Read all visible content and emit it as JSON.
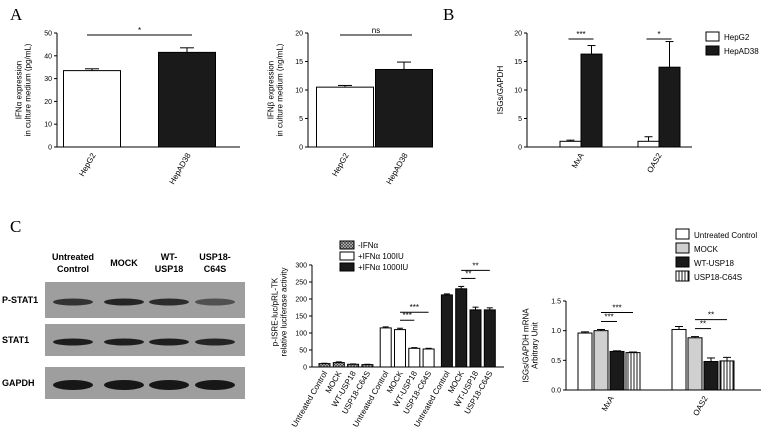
{
  "panels": {
    "A": "A",
    "B": "B",
    "C": "C"
  },
  "chart_data": [
    {
      "id": "ifna",
      "type": "bar",
      "ylabel": "IFNα expression\nin culture medium (pg/mL)",
      "ylim": [
        0,
        50
      ],
      "yticks": [
        0,
        10,
        20,
        30,
        40,
        50
      ],
      "categories": [
        "HepG2",
        "HepAD38"
      ],
      "values": [
        33.5,
        41.5
      ],
      "errors": [
        0.8,
        2.0
      ],
      "fills": [
        "#ffffff",
        "#1a1a1a"
      ],
      "significance": [
        {
          "from": 0,
          "to": 1,
          "label": "*"
        }
      ]
    },
    {
      "id": "ifnb",
      "type": "bar",
      "ylabel": "IFNβ expression\nin culture medium (ng/mL)",
      "ylim": [
        0,
        20
      ],
      "yticks": [
        0,
        5,
        10,
        15,
        20
      ],
      "categories": [
        "HepG2",
        "HepAD38"
      ],
      "values": [
        10.5,
        13.6
      ],
      "errors": [
        0.3,
        1.3
      ],
      "fills": [
        "#ffffff",
        "#1a1a1a"
      ],
      "significance": [
        {
          "from": 0,
          "to": 1,
          "label": "ns"
        }
      ]
    },
    {
      "id": "isgs",
      "type": "bar",
      "ylabel": "ISGs/GAPDH",
      "ylim": [
        0,
        20
      ],
      "yticks": [
        0,
        5,
        10,
        15,
        20
      ],
      "categories": [
        "MxA",
        "OAS2"
      ],
      "series": [
        {
          "name": "HepG2",
          "fill": "#ffffff",
          "values": [
            1.0,
            1.0
          ],
          "errors": [
            0.2,
            0.8
          ]
        },
        {
          "name": "HepAD38",
          "fill": "#1a1a1a",
          "values": [
            16.3,
            14.0
          ],
          "errors": [
            1.5,
            4.5
          ]
        }
      ],
      "significance": [
        {
          "group": 0,
          "label": "***"
        },
        {
          "group": 1,
          "label": "*"
        }
      ]
    },
    {
      "id": "luciferase",
      "type": "bar",
      "ylabel": "p-ISRE-luc/pRL-TK\nrelative luciferase activity",
      "ylim": [
        0,
        300
      ],
      "yticks": [
        0,
        50,
        100,
        150,
        200,
        250,
        300
      ],
      "categories": [
        "Untreated Control",
        "MOCK",
        "WT-USP18",
        "USP18-C64S",
        "Untreated Control",
        "MOCK",
        "WT-USP18",
        "USP18-C64S",
        "Untreated Control",
        "MOCK",
        "WT-USP18",
        "USP18-C64S"
      ],
      "groups": [
        "-IFNα",
        "+IFNα 100IU",
        "+IFNα 1000IU"
      ],
      "values": [
        10,
        13,
        8,
        7,
        115,
        110,
        55,
        53,
        212,
        230,
        168,
        168
      ],
      "errors": [
        1,
        2,
        1,
        1,
        3,
        4,
        2,
        2,
        3,
        7,
        8,
        6
      ],
      "significance": [
        {
          "from": 5,
          "to": 6,
          "label": "***",
          "level": 0
        },
        {
          "from": 5,
          "to": 7,
          "label": "***",
          "level": 1
        },
        {
          "from": 9,
          "to": 10,
          "label": "**",
          "level": 0
        },
        {
          "from": 9,
          "to": 11,
          "label": "**",
          "level": 1
        }
      ]
    },
    {
      "id": "usp18_isgs",
      "type": "bar",
      "ylabel": "ISGs/GAPDH mRNA\nArbitrary Unit",
      "ylim": [
        0,
        1.5
      ],
      "yticks": [
        "0.0",
        "0.5",
        "1.0",
        "1.5"
      ],
      "categories": [
        "MxA",
        "OAS2"
      ],
      "series": [
        {
          "name": "Untreated Control",
          "fill": "white",
          "values": [
            0.96,
            1.02
          ],
          "errors": [
            0.02,
            0.05
          ]
        },
        {
          "name": "MOCK",
          "fill": "lightgray",
          "values": [
            1.0,
            0.88
          ],
          "errors": [
            0.02,
            0.02
          ]
        },
        {
          "name": "WT-USP18",
          "fill": "black",
          "values": [
            0.65,
            0.48
          ],
          "errors": [
            0.01,
            0.06
          ]
        },
        {
          "name": "USP18-C64S",
          "fill": "stripes",
          "values": [
            0.63,
            0.49
          ],
          "errors": [
            0.01,
            0.06
          ]
        }
      ],
      "significance": [
        {
          "group": 0,
          "from": 1,
          "to": 2,
          "label": "***",
          "level": 0
        },
        {
          "group": 0,
          "from": 1,
          "to": 3,
          "label": "***",
          "level": 1
        },
        {
          "group": 1,
          "from": 1,
          "to": 2,
          "label": "**",
          "level": 0
        },
        {
          "group": 1,
          "from": 1,
          "to": 3,
          "label": "**",
          "level": 1
        }
      ]
    }
  ],
  "western_blot": {
    "columns": [
      "Untreated\nControl",
      "MOCK",
      "WT-\nUSP18",
      "USP18-\nC64S"
    ],
    "rows": [
      "P-STAT1",
      "STAT1",
      "GAPDH"
    ]
  }
}
